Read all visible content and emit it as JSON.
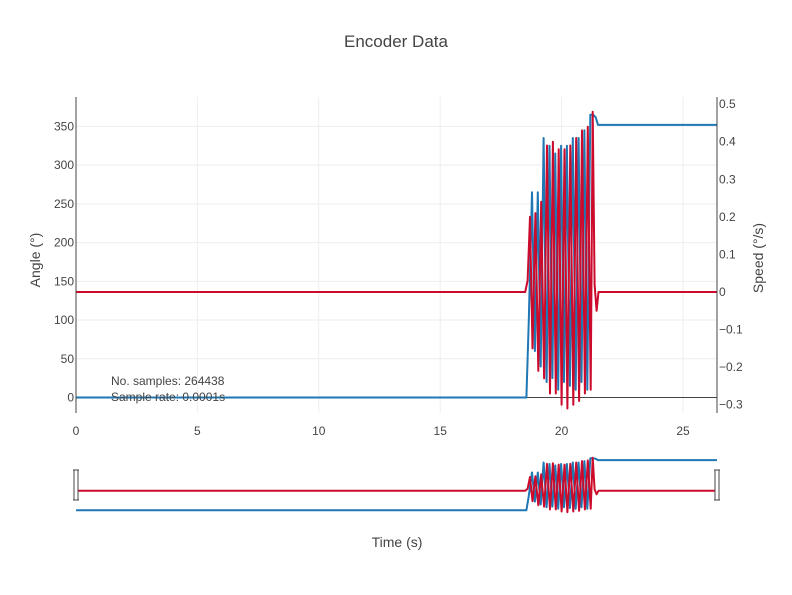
{
  "chart_data": {
    "type": "line",
    "title": "Encoder Data",
    "xlabel": "Time (s)",
    "ylabel": "Angle (°)",
    "y2label": "Speed (°/s)",
    "xlim": [
      0,
      26.4
    ],
    "ylim": [
      -20,
      388
    ],
    "y2lim": [
      -0.322,
      0.519
    ],
    "x_ticks": [
      0,
      5,
      10,
      15,
      20,
      25
    ],
    "y_ticks": [
      0,
      50,
      100,
      150,
      200,
      250,
      300,
      350
    ],
    "y2_ticks": [
      -0.3,
      -0.2,
      -0.1,
      0,
      0.1,
      0.2,
      0.3,
      0.4,
      0.5
    ],
    "y2_tick_labels": [
      "−0.3",
      "−0.2",
      "−0.1",
      "0",
      "0.1",
      "0.2",
      "0.3",
      "0.4",
      "0.5"
    ],
    "grid": true,
    "legend": "none",
    "range_slider": true,
    "annotations": [
      "No. samples: 264438",
      "Sample rate: 0.0001s"
    ],
    "series": [
      {
        "axis": "y",
        "color": "#1f77b4",
        "x": [
          0,
          18.55,
          18.65,
          18.78,
          18.9,
          19.02,
          19.14,
          19.26,
          19.38,
          19.5,
          19.62,
          19.74,
          19.86,
          19.98,
          20.1,
          20.22,
          20.34,
          20.46,
          20.58,
          20.7,
          20.82,
          20.94,
          21.06,
          21.18,
          21.3,
          21.4,
          21.5,
          21.6,
          26.4
        ],
        "y": [
          0,
          0,
          100,
          265,
          60,
          265,
          40,
          335,
          20,
          325,
          25,
          315,
          10,
          325,
          20,
          325,
          15,
          335,
          10,
          335,
          20,
          345,
          10,
          365,
          365,
          362,
          352,
          352,
          352
        ]
      },
      {
        "axis": "y2",
        "color": "#cc0a2c",
        "x": [
          0,
          18.5,
          18.6,
          18.7,
          18.8,
          18.92,
          19.04,
          19.16,
          19.28,
          19.4,
          19.52,
          19.64,
          19.76,
          19.88,
          20.0,
          20.12,
          20.24,
          20.36,
          20.48,
          20.6,
          20.72,
          20.84,
          20.96,
          21.08,
          21.2,
          21.28,
          21.36,
          21.44,
          21.52,
          21.58,
          21.64,
          26.4
        ],
        "y": [
          0,
          0,
          0.03,
          0.2,
          -0.15,
          0.21,
          -0.21,
          0.24,
          -0.23,
          0.39,
          -0.27,
          0.4,
          -0.27,
          0.38,
          -0.3,
          0.38,
          -0.31,
          0.39,
          -0.3,
          0.41,
          -0.29,
          0.43,
          -0.27,
          0.44,
          -0.26,
          0.48,
          0.02,
          -0.05,
          0.0,
          0.0,
          0.0,
          0.0
        ]
      }
    ]
  }
}
